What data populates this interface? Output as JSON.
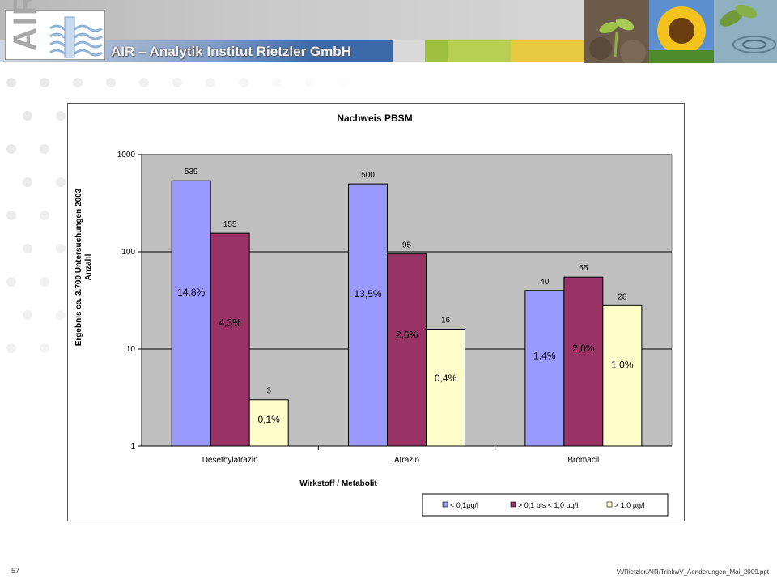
{
  "header": {
    "logo_text": "AIR",
    "company": "AIR – Analytik Institut Rietzler GmbH",
    "photos": [
      "seedling-photo",
      "sunflower-photo",
      "water-drop-photo"
    ],
    "stripe_colors": [
      "#3c6aa8",
      "#d9d9d9",
      "#9fbf40",
      "#b9cf53",
      "#e8c840"
    ]
  },
  "chart_data": {
    "type": "bar",
    "title": "Nachweis PBSM",
    "xlabel": "Wirkstoff / Metabolit",
    "ylabel_line1": "Ergebnis ca. 3.700 Untersuchungen 2003",
    "ylabel_line2": "Anzahl",
    "yscale": "log",
    "ylim": [
      1,
      1000
    ],
    "yticks": [
      "1",
      "10",
      "100",
      "1000"
    ],
    "grid": true,
    "legend_position": "bottom-right",
    "categories": [
      "Desethylatrazin",
      "Atrazin",
      "Bromacil"
    ],
    "series": [
      {
        "name": "< 0,1µg/l",
        "color": "#9999ff",
        "values": [
          539,
          500,
          40
        ],
        "value_labels": [
          "539",
          "500",
          "40"
        ],
        "percent_labels": [
          "14,8%",
          "13,5%",
          "1,4%"
        ]
      },
      {
        "name": "> 0,1 bis < 1,0 µg/l",
        "color": "#993366",
        "values": [
          155,
          95,
          55
        ],
        "value_labels": [
          "155",
          "95",
          "55"
        ],
        "percent_labels": [
          "4,3%",
          "2,6%",
          "2,0%"
        ]
      },
      {
        "name": "> 1,0 µg/l",
        "color": "#ffffcc",
        "values": [
          3,
          16,
          28
        ],
        "value_labels": [
          "3",
          "16",
          "28"
        ],
        "percent_labels": [
          "0,1%",
          "0,4%",
          "1,0%"
        ]
      }
    ]
  },
  "footer": {
    "page_number": "57",
    "file_path": "V:/Rietzler/AIR/TrinkwV_Aenderungen_Mai_2009.ppt"
  }
}
